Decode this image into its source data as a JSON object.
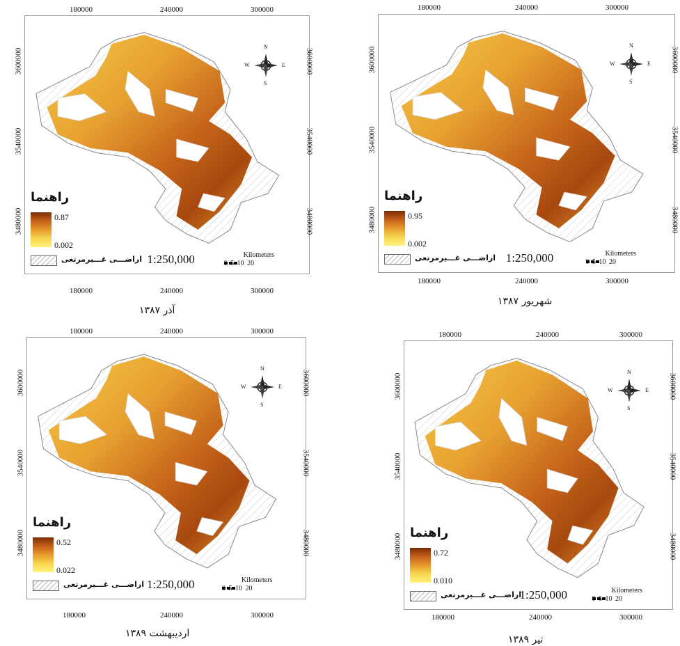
{
  "colors": {
    "ramp_dark": "#7a2c06",
    "ramp_mid": "#e79a2c",
    "ramp_light": "#fff17a",
    "frame": "#999999",
    "nonrange_hatch": "#bbbbbb"
  },
  "icons": {
    "compass": "north-arrow-compass-rose"
  },
  "common": {
    "x_ticks": [
      "180000",
      "240000",
      "300000"
    ],
    "y_ticks": [
      "3600000",
      "3540000",
      "3480000"
    ],
    "legend_title": "راهنما",
    "nonrange_label": "اراضـــی غـــیرمرتعی",
    "scale_text": "1:250,000",
    "km_label": "Kilometers",
    "km_ticks": "0 5 10  20",
    "compass_n": "N",
    "compass_s": "S",
    "compass_e": "E",
    "compass_w": "W"
  },
  "maps": [
    {
      "caption": "آذر ۱۳۸۷",
      "legend_max": "0.87",
      "legend_min": "0.002"
    },
    {
      "caption": "شهریور ۱۳۸۷",
      "legend_max": "0.95",
      "legend_min": "0.002"
    },
    {
      "caption": "اردیبهشت ۱۳۸۹",
      "legend_max": "0.52",
      "legend_min": "0.022"
    },
    {
      "caption": "تیر ۱۳۸۹",
      "legend_max": "0.72",
      "legend_min": "0.010"
    }
  ]
}
